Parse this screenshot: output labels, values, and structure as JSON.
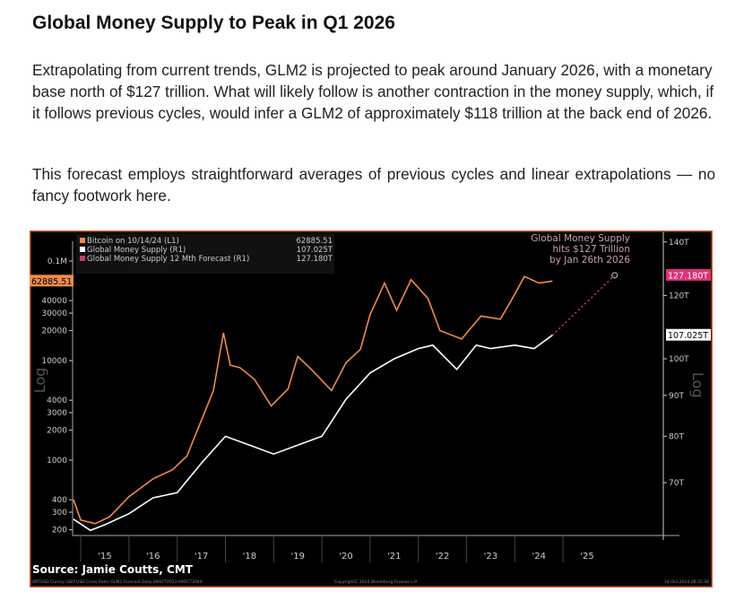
{
  "title": "Global Money Supply to Peak in Q1 2026",
  "paragraphs": [
    "Extrapolating from current trends, GLM2 is projected to peak around January 2026, with a monetary base north of $127 trillion. What will likely follow is another contraction in the money supply, which, if it follows previous cycles, would infer a GLM2 of approximately $118 trillion at the back end of 2026.",
    "This forecast employs straightforward averages of previous cycles and linear extrapolations — no fancy footwork here."
  ],
  "chart_data": {
    "type": "line",
    "legend": [
      {
        "name": "Bitcoin on 10/14/24 (L1)",
        "value": "62885.51",
        "color": "#f08a4b"
      },
      {
        "name": "Global Money Supply (R1)",
        "value": "107.025T",
        "color": "#ffffff"
      },
      {
        "name": "Global Money Supply 12 Mth Forecast  (R1)",
        "value": "127.180T",
        "color": "#c0406a"
      }
    ],
    "legend_placement": "top-left",
    "annotation": [
      "Global Money Supply",
      "hits $127 Trillion",
      "by Jan 26th 2026"
    ],
    "left_axis": {
      "scale": "log",
      "label": "Log",
      "ticks": [
        "0.1M",
        "40000",
        "30000",
        "20000",
        "10000",
        "4000",
        "3000",
        "2000",
        "1000",
        "400",
        "300",
        "200"
      ],
      "tick_values": [
        100000,
        40000,
        30000,
        20000,
        10000,
        4000,
        3000,
        2000,
        1000,
        400,
        300,
        200
      ],
      "last_value_label": "62885.51"
    },
    "right_axis": {
      "scale": "log",
      "label": "Log",
      "ticks": [
        "140T",
        "120T",
        "100T",
        "90T",
        "80T",
        "70T"
      ],
      "tick_values": [
        140,
        120,
        100,
        90,
        80,
        70
      ],
      "last_value_label": "107.025T",
      "forecast_label": "127.180T"
    },
    "x_ticks": [
      "'15",
      "'16",
      "'17",
      "'18",
      "'19",
      "'20",
      "'21",
      "'22",
      "'23",
      "'24",
      "'25"
    ],
    "bitcoin": [
      [
        2014.85,
        400
      ],
      [
        2015.0,
        250
      ],
      [
        2015.3,
        230
      ],
      [
        2015.6,
        270
      ],
      [
        2016.0,
        430
      ],
      [
        2016.5,
        650
      ],
      [
        2016.9,
        800
      ],
      [
        2017.2,
        1100
      ],
      [
        2017.5,
        2500
      ],
      [
        2017.75,
        5000
      ],
      [
        2017.96,
        19000
      ],
      [
        2018.1,
        9000
      ],
      [
        2018.3,
        8500
      ],
      [
        2018.6,
        6500
      ],
      [
        2018.95,
        3500
      ],
      [
        2019.3,
        5200
      ],
      [
        2019.5,
        11000
      ],
      [
        2019.8,
        8000
      ],
      [
        2020.2,
        5000
      ],
      [
        2020.5,
        9500
      ],
      [
        2020.8,
        13000
      ],
      [
        2021.0,
        29000
      ],
      [
        2021.3,
        60000
      ],
      [
        2021.55,
        32000
      ],
      [
        2021.85,
        65000
      ],
      [
        2022.2,
        42000
      ],
      [
        2022.45,
        20000
      ],
      [
        2022.9,
        16500
      ],
      [
        2023.3,
        28000
      ],
      [
        2023.7,
        26000
      ],
      [
        2023.95,
        42000
      ],
      [
        2024.2,
        70000
      ],
      [
        2024.5,
        60000
      ],
      [
        2024.78,
        62885.51
      ]
    ],
    "money_supply": [
      [
        2014.85,
        63
      ],
      [
        2015.2,
        61
      ],
      [
        2015.5,
        62
      ],
      [
        2016.0,
        64
      ],
      [
        2016.5,
        67
      ],
      [
        2017.0,
        68
      ],
      [
        2017.5,
        74
      ],
      [
        2018.0,
        80
      ],
      [
        2018.5,
        78
      ],
      [
        2019.0,
        76
      ],
      [
        2019.5,
        78
      ],
      [
        2020.0,
        80
      ],
      [
        2020.5,
        89
      ],
      [
        2021.0,
        96
      ],
      [
        2021.5,
        100
      ],
      [
        2022.0,
        103
      ],
      [
        2022.3,
        104
      ],
      [
        2022.8,
        97
      ],
      [
        2023.2,
        104
      ],
      [
        2023.5,
        103
      ],
      [
        2024.0,
        104
      ],
      [
        2024.4,
        103
      ],
      [
        2024.78,
        107.025
      ]
    ],
    "forecast": [
      [
        2024.78,
        107.025
      ],
      [
        2026.07,
        127.18
      ]
    ]
  },
  "source": "Source: Jamie Coutts, CMT",
  "footer": {
    "left": "XBTUSD Curncy (XBT-USD Cross Rate) GLM2 Forecast  Daily 09OCT2013-09OCT2040",
    "center": "Copyright© 2024 Bloomberg Finance L.P.",
    "right": "14-Oct-2024 08:32:38"
  }
}
